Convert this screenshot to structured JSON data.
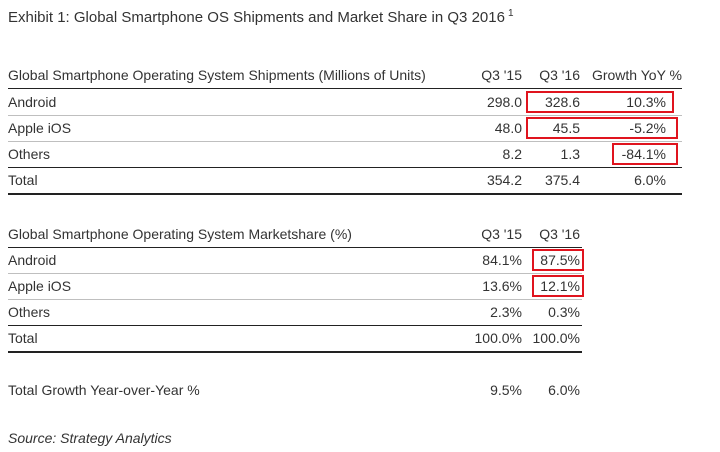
{
  "title": "Exhibit 1: Global Smartphone OS Shipments and Market Share in Q3 2016",
  "title_footnote": "1",
  "shipments": {
    "header": {
      "label": "Global Smartphone Operating System Shipments (Millions of Units)",
      "q315": "Q3 '15",
      "q316": "Q3 '16",
      "growth": "Growth YoY %"
    },
    "rows": [
      {
        "label": "Android",
        "q315": "298.0",
        "q316": "328.6",
        "growth": "10.3%"
      },
      {
        "label": "Apple iOS",
        "q315": "48.0",
        "q316": "45.5",
        "growth": "-5.2%"
      },
      {
        "label": "Others",
        "q315": "8.2",
        "q316": "1.3",
        "growth": "-84.1%"
      }
    ],
    "total": {
      "label": "Total",
      "q315": "354.2",
      "q316": "375.4",
      "growth": "6.0%"
    }
  },
  "marketshare": {
    "header": {
      "label": "Global Smartphone Operating System Marketshare (%)",
      "q315": "Q3 '15",
      "q316": "Q3 '16"
    },
    "rows": [
      {
        "label": "Android",
        "q315": "84.1%",
        "q316": "87.5%"
      },
      {
        "label": "Apple iOS",
        "q315": "13.6%",
        "q316": "12.1%"
      },
      {
        "label": "Others",
        "q315": "2.3%",
        "q316": "0.3%"
      }
    ],
    "total": {
      "label": "Total",
      "q315": "100.0%",
      "q316": "100.0%"
    }
  },
  "growth_row": {
    "label": "Total Growth Year-over-Year %",
    "q315": "9.5%",
    "q316": "6.0%"
  },
  "source": "Source: Strategy Analytics",
  "colors": {
    "highlight": "#e0141e",
    "text": "#333333"
  }
}
